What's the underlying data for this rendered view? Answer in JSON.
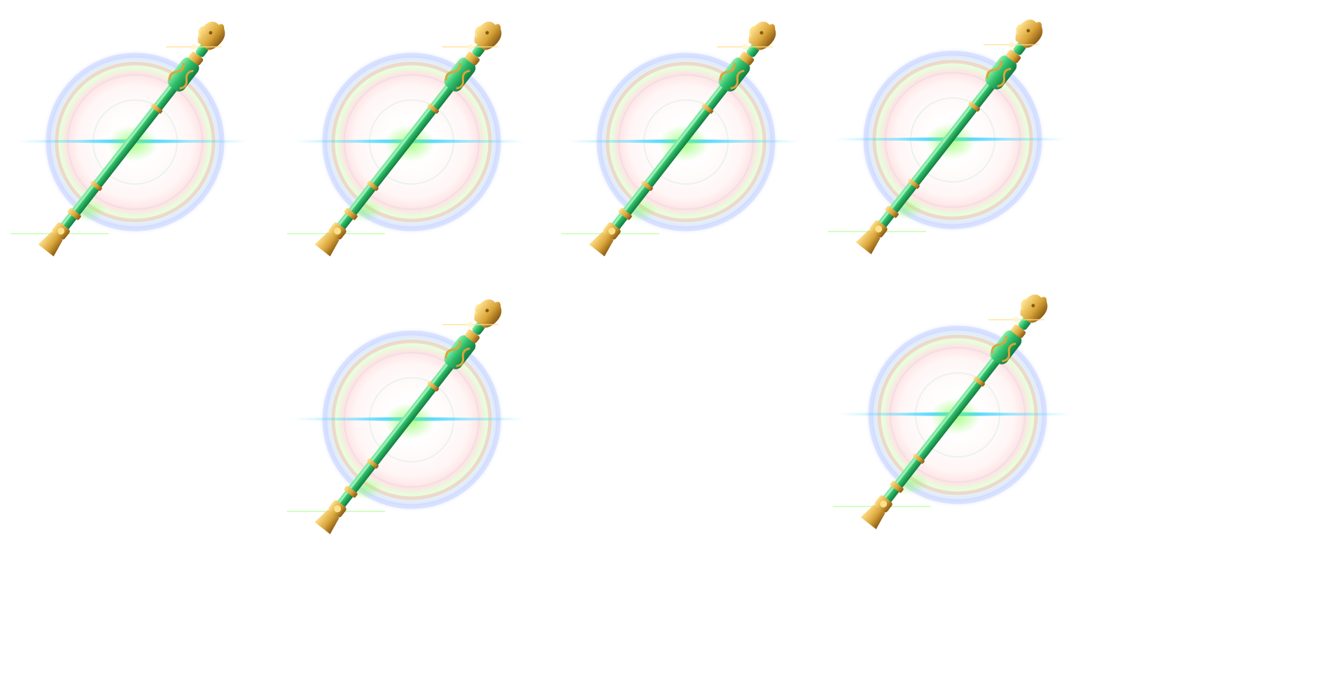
{
  "sprite_sheet": {
    "frames": [
      {
        "present": true,
        "icon": "jade-dragon-staff-icon"
      },
      {
        "present": true,
        "icon": "jade-dragon-staff-icon"
      },
      {
        "present": true,
        "icon": "jade-dragon-staff-icon"
      },
      {
        "present": true,
        "icon": "jade-dragon-staff-icon"
      },
      {
        "present": false
      },
      {
        "present": true,
        "icon": "jade-dragon-staff-icon"
      },
      {
        "present": false
      },
      {
        "present": true,
        "icon": "jade-dragon-staff-icon"
      }
    ],
    "colors": {
      "jade": "#2fbf6a",
      "jade_light": "#8cf0a8",
      "jade_dark": "#127a3e",
      "gold": "#d9a53a",
      "gold_light": "#ffe08a",
      "gold_dark": "#8a5a12",
      "glow_cyan": "#3fd4ff",
      "glow_green": "#7dff4a",
      "halo_blue": "#9fb6ff",
      "halo_red": "#ff9a9a"
    }
  }
}
